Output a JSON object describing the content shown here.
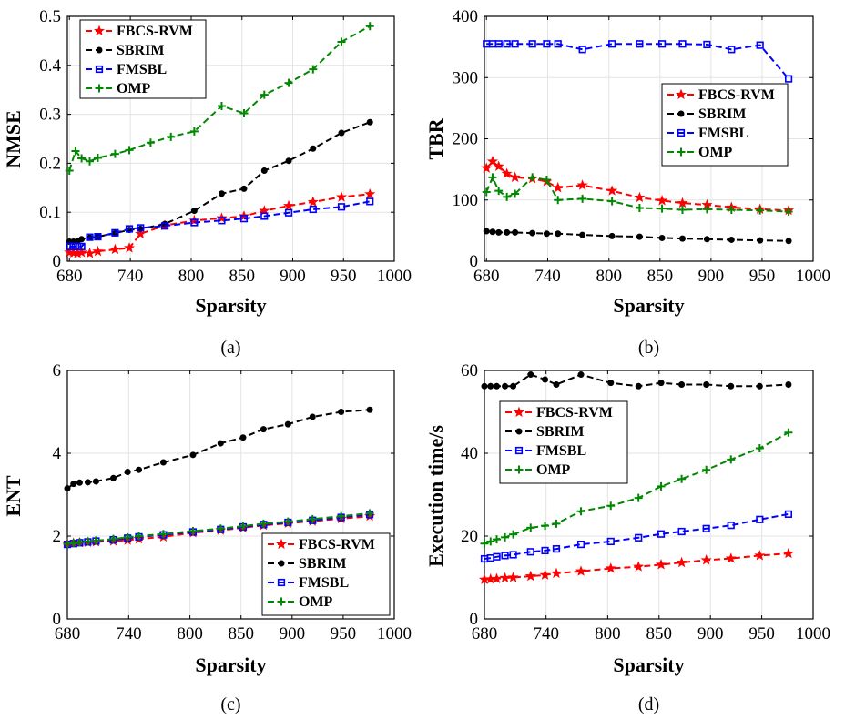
{
  "chart_data": [
    {
      "type": "line",
      "panel_label": "(a)",
      "xlabel": "Sparsity",
      "ylabel": "NMSE",
      "xlim": [
        678,
        1000
      ],
      "ylim": [
        0,
        0.5
      ],
      "xticks": [
        "680",
        "740",
        "800",
        "850",
        "900",
        "950",
        "1000"
      ],
      "xtick_values": [
        680,
        740,
        800,
        850,
        900,
        950,
        1000
      ],
      "yticks": [
        "0",
        "0.1",
        "0.2",
        "0.3",
        "0.4",
        "0.5"
      ],
      "ytick_values": [
        0,
        0.1,
        0.2,
        0.3,
        0.4,
        0.5
      ],
      "legend_position": "top-left",
      "series": [
        {
          "name": "FBCS-RVM",
          "color": "#ff0000",
          "marker": "star",
          "x": [
            680,
            684,
            688,
            692,
            700,
            708,
            725,
            739,
            750,
            774,
            803,
            830,
            852,
            872,
            896,
            920,
            948,
            976
          ],
          "y": [
            0.018,
            0.017,
            0.016,
            0.018,
            0.016,
            0.02,
            0.024,
            0.027,
            0.056,
            0.073,
            0.083,
            0.088,
            0.092,
            0.103,
            0.113,
            0.121,
            0.131,
            0.137
          ]
        },
        {
          "name": "SBRIM",
          "color": "#000000",
          "marker": "dot",
          "x": [
            680,
            684,
            688,
            692,
            700,
            708,
            725,
            739,
            750,
            774,
            803,
            830,
            852,
            872,
            896,
            920,
            948,
            976
          ],
          "y": [
            0.04,
            0.04,
            0.041,
            0.045,
            0.048,
            0.05,
            0.057,
            0.064,
            0.066,
            0.076,
            0.103,
            0.138,
            0.148,
            0.185,
            0.205,
            0.23,
            0.262,
            0.284
          ]
        },
        {
          "name": "FMSBL",
          "color": "#0000ff",
          "marker": "square",
          "x": [
            680,
            684,
            688,
            692,
            700,
            708,
            725,
            739,
            750,
            774,
            803,
            830,
            852,
            872,
            896,
            920,
            948,
            976
          ],
          "y": [
            0.03,
            0.03,
            0.03,
            0.03,
            0.049,
            0.05,
            0.058,
            0.066,
            0.068,
            0.072,
            0.079,
            0.083,
            0.087,
            0.092,
            0.099,
            0.106,
            0.111,
            0.122
          ]
        },
        {
          "name": "OMP",
          "color": "#008800",
          "marker": "plus",
          "x": [
            680,
            686,
            692,
            700,
            708,
            725,
            739,
            760,
            780,
            803,
            830,
            852,
            872,
            896,
            920,
            948,
            976
          ],
          "y": [
            0.185,
            0.225,
            0.21,
            0.204,
            0.211,
            0.219,
            0.227,
            0.242,
            0.254,
            0.265,
            0.317,
            0.302,
            0.34,
            0.364,
            0.392,
            0.448,
            0.48
          ]
        }
      ]
    },
    {
      "type": "line",
      "panel_label": "(b)",
      "xlabel": "Sparsity",
      "ylabel": "TBR",
      "xlim": [
        678,
        1000
      ],
      "ylim": [
        0,
        400
      ],
      "xticks": [
        "680",
        "740",
        "800",
        "850",
        "900",
        "950",
        "1000"
      ],
      "xtick_values": [
        680,
        740,
        800,
        850,
        900,
        950,
        1000
      ],
      "yticks": [
        "0",
        "100",
        "200",
        "300",
        "400"
      ],
      "ytick_values": [
        0,
        100,
        200,
        300,
        400
      ],
      "legend_position": "right-middle",
      "series": [
        {
          "name": "FBCS-RVM",
          "color": "#ff0000",
          "marker": "star",
          "x": [
            680,
            686,
            692,
            700,
            708,
            725,
            739,
            750,
            774,
            803,
            830,
            852,
            872,
            896,
            920,
            948,
            976
          ],
          "y": [
            152,
            163,
            155,
            143,
            137,
            135,
            130,
            120,
            124,
            115,
            104,
            99,
            95,
            92,
            88,
            85,
            83
          ]
        },
        {
          "name": "SBRIM",
          "color": "#000000",
          "marker": "dot",
          "x": [
            680,
            686,
            692,
            700,
            708,
            725,
            739,
            750,
            774,
            803,
            830,
            852,
            872,
            896,
            920,
            948,
            976
          ],
          "y": [
            49,
            48,
            47,
            47,
            47,
            46,
            45,
            45,
            43,
            41,
            40,
            38,
            37,
            36,
            35,
            34,
            33
          ]
        },
        {
          "name": "FMSBL",
          "color": "#0000ff",
          "marker": "square",
          "x": [
            680,
            686,
            692,
            700,
            708,
            725,
            739,
            750,
            774,
            803,
            830,
            852,
            872,
            896,
            920,
            948,
            976
          ],
          "y": [
            355,
            355,
            355,
            355,
            355,
            355,
            355,
            355,
            346,
            355,
            355,
            355,
            355,
            354,
            346,
            353,
            298
          ]
        },
        {
          "name": "OMP",
          "color": "#008800",
          "marker": "plus",
          "x": [
            680,
            686,
            692,
            700,
            708,
            725,
            739,
            750,
            774,
            803,
            830,
            852,
            872,
            896,
            920,
            948,
            976
          ],
          "y": [
            113,
            137,
            115,
            105,
            110,
            137,
            133,
            100,
            102,
            98,
            87,
            86,
            84,
            85,
            84,
            83,
            81
          ]
        }
      ]
    },
    {
      "type": "line",
      "panel_label": "(c)",
      "xlabel": "Sparsity",
      "ylabel": "ENT",
      "xlim": [
        680,
        1000
      ],
      "ylim": [
        0,
        6
      ],
      "xticks": [
        "680",
        "740",
        "800",
        "850",
        "900",
        "950",
        "1000"
      ],
      "xtick_values": [
        680,
        740,
        800,
        850,
        900,
        950,
        1000
      ],
      "yticks": [
        "0",
        "2",
        "4",
        "6"
      ],
      "ytick_values": [
        0,
        2,
        4,
        6
      ],
      "legend_position": "bottom-right",
      "series": [
        {
          "name": "FBCS-RVM",
          "color": "#ff0000",
          "marker": "star",
          "x": [
            680,
            686,
            692,
            700,
            708,
            725,
            739,
            750,
            774,
            803,
            830,
            852,
            872,
            896,
            920,
            948,
            976
          ],
          "y": [
            1.82,
            1.83,
            1.84,
            1.85,
            1.86,
            1.88,
            1.9,
            1.93,
            1.98,
            2.08,
            2.14,
            2.2,
            2.26,
            2.31,
            2.36,
            2.42,
            2.48
          ]
        },
        {
          "name": "SBRIM",
          "color": "#000000",
          "marker": "dot",
          "x": [
            680,
            686,
            692,
            700,
            708,
            725,
            739,
            750,
            774,
            803,
            830,
            852,
            872,
            896,
            920,
            948,
            976
          ],
          "y": [
            3.15,
            3.26,
            3.29,
            3.3,
            3.32,
            3.4,
            3.55,
            3.6,
            3.78,
            3.96,
            4.24,
            4.38,
            4.58,
            4.7,
            4.88,
            5.0,
            5.05
          ]
        },
        {
          "name": "FMSBL",
          "color": "#0000ff",
          "marker": "square",
          "x": [
            680,
            686,
            692,
            700,
            708,
            725,
            739,
            750,
            774,
            803,
            830,
            852,
            872,
            896,
            920,
            948,
            976
          ],
          "y": [
            1.8,
            1.82,
            1.84,
            1.86,
            1.88,
            1.91,
            1.95,
            1.98,
            2.03,
            2.1,
            2.16,
            2.22,
            2.28,
            2.33,
            2.38,
            2.45,
            2.52
          ]
        },
        {
          "name": "OMP",
          "color": "#008800",
          "marker": "plus",
          "x": [
            680,
            686,
            692,
            700,
            708,
            725,
            739,
            750,
            774,
            803,
            830,
            852,
            872,
            896,
            920,
            948,
            976
          ],
          "y": [
            1.81,
            1.83,
            1.85,
            1.87,
            1.89,
            1.93,
            1.97,
            2.0,
            2.05,
            2.12,
            2.18,
            2.24,
            2.3,
            2.35,
            2.41,
            2.48,
            2.55
          ]
        }
      ]
    },
    {
      "type": "line",
      "panel_label": "(d)",
      "xlabel": "Sparsity",
      "ylabel": "Execution time/s",
      "xlim": [
        680,
        1000
      ],
      "ylim": [
        0,
        60
      ],
      "xticks": [
        "680",
        "740",
        "800",
        "850",
        "900",
        "950",
        "1000"
      ],
      "xtick_values": [
        680,
        740,
        800,
        850,
        900,
        950,
        1000
      ],
      "yticks": [
        "0",
        "20",
        "40",
        "60"
      ],
      "ytick_values": [
        0,
        20,
        40,
        60
      ],
      "legend_position": "top-left",
      "series": [
        {
          "name": "FBCS-RVM",
          "color": "#ff0000",
          "marker": "star",
          "x": [
            680,
            686,
            692,
            700,
            708,
            725,
            739,
            750,
            774,
            803,
            830,
            852,
            872,
            896,
            920,
            948,
            976
          ],
          "y": [
            9.5,
            9.6,
            9.7,
            9.9,
            10.0,
            10.3,
            10.6,
            11.0,
            11.5,
            12.2,
            12.6,
            13.1,
            13.6,
            14.2,
            14.6,
            15.3,
            15.8
          ]
        },
        {
          "name": "SBRIM",
          "color": "#000000",
          "marker": "dot",
          "x": [
            680,
            686,
            692,
            700,
            708,
            725,
            739,
            750,
            774,
            803,
            830,
            852,
            872,
            896,
            920,
            948,
            976
          ],
          "y": [
            56.2,
            56.2,
            56.2,
            56.2,
            56.2,
            59.0,
            57.8,
            56.6,
            59.0,
            57.0,
            56.2,
            57.0,
            56.6,
            56.6,
            56.2,
            56.2,
            56.6
          ]
        },
        {
          "name": "FMSBL",
          "color": "#0000ff",
          "marker": "square",
          "x": [
            680,
            686,
            692,
            700,
            708,
            725,
            739,
            750,
            774,
            803,
            830,
            852,
            872,
            896,
            920,
            948,
            976
          ],
          "y": [
            14.5,
            14.7,
            15.0,
            15.3,
            15.5,
            16.2,
            16.5,
            16.9,
            18.0,
            18.7,
            19.6,
            20.5,
            21.1,
            21.8,
            22.6,
            24.0,
            25.3
          ]
        },
        {
          "name": "OMP",
          "color": "#008800",
          "marker": "plus",
          "x": [
            680,
            686,
            692,
            700,
            708,
            725,
            739,
            750,
            774,
            803,
            830,
            852,
            872,
            896,
            920,
            948,
            976
          ],
          "y": [
            18.2,
            18.7,
            19.2,
            19.7,
            20.4,
            22.0,
            22.5,
            23.0,
            26.0,
            27.3,
            29.2,
            32.0,
            33.8,
            36.0,
            38.5,
            41.2,
            45.0
          ]
        }
      ]
    }
  ]
}
